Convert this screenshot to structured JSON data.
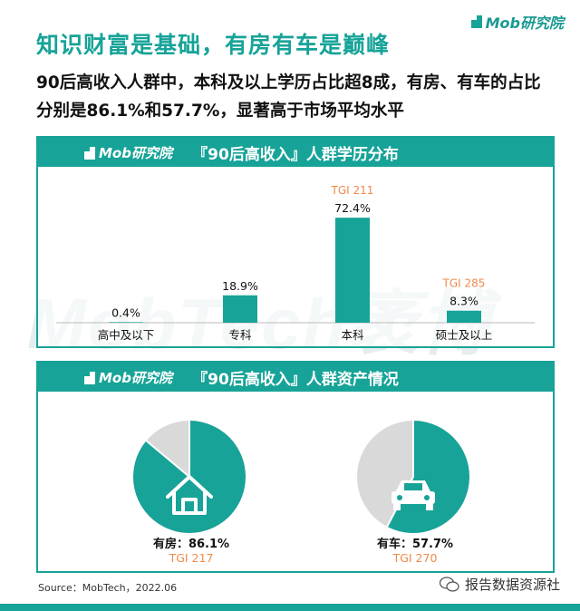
{
  "brand": {
    "name": "Mob研究院"
  },
  "headline": "知识财富是基础，有房有车是巅峰",
  "subhead": "90后高收入人群中，本科及以上学历占比超8成，有房、有车的占比分别是86.1%和57.7%，显著高于市场平均水平",
  "watermark": "MobTech袤博",
  "colors": {
    "teal": "#17a398",
    "gray": "#d9d9d9",
    "tgi": "#f08a4b"
  },
  "chart_data": [
    {
      "type": "bar",
      "title": "『90后高收入』人群学历分布",
      "categories": [
        "高中及以下",
        "专科",
        "本科",
        "硕士及以上"
      ],
      "values": [
        0.4,
        18.9,
        72.4,
        8.3
      ],
      "value_labels": [
        "0.4%",
        "18.9%",
        "72.4%",
        "8.3%"
      ],
      "tgi_labels": [
        "",
        "",
        "TGI 211",
        "TGI 285"
      ],
      "ylim": [
        0,
        80
      ]
    },
    {
      "type": "pie",
      "title": "『90后高收入』人群资产情况",
      "pies": [
        {
          "label": "有房：86.1%",
          "value": 86.1,
          "tgi": "TGI 217",
          "icon": "house-icon"
        },
        {
          "label": "有车：57.7%",
          "value": 57.7,
          "tgi": "TGI 270",
          "icon": "car-icon"
        }
      ]
    }
  ],
  "footer": {
    "source": "Source：MobTech，2022.06",
    "wechat": "报告数据资源社"
  }
}
